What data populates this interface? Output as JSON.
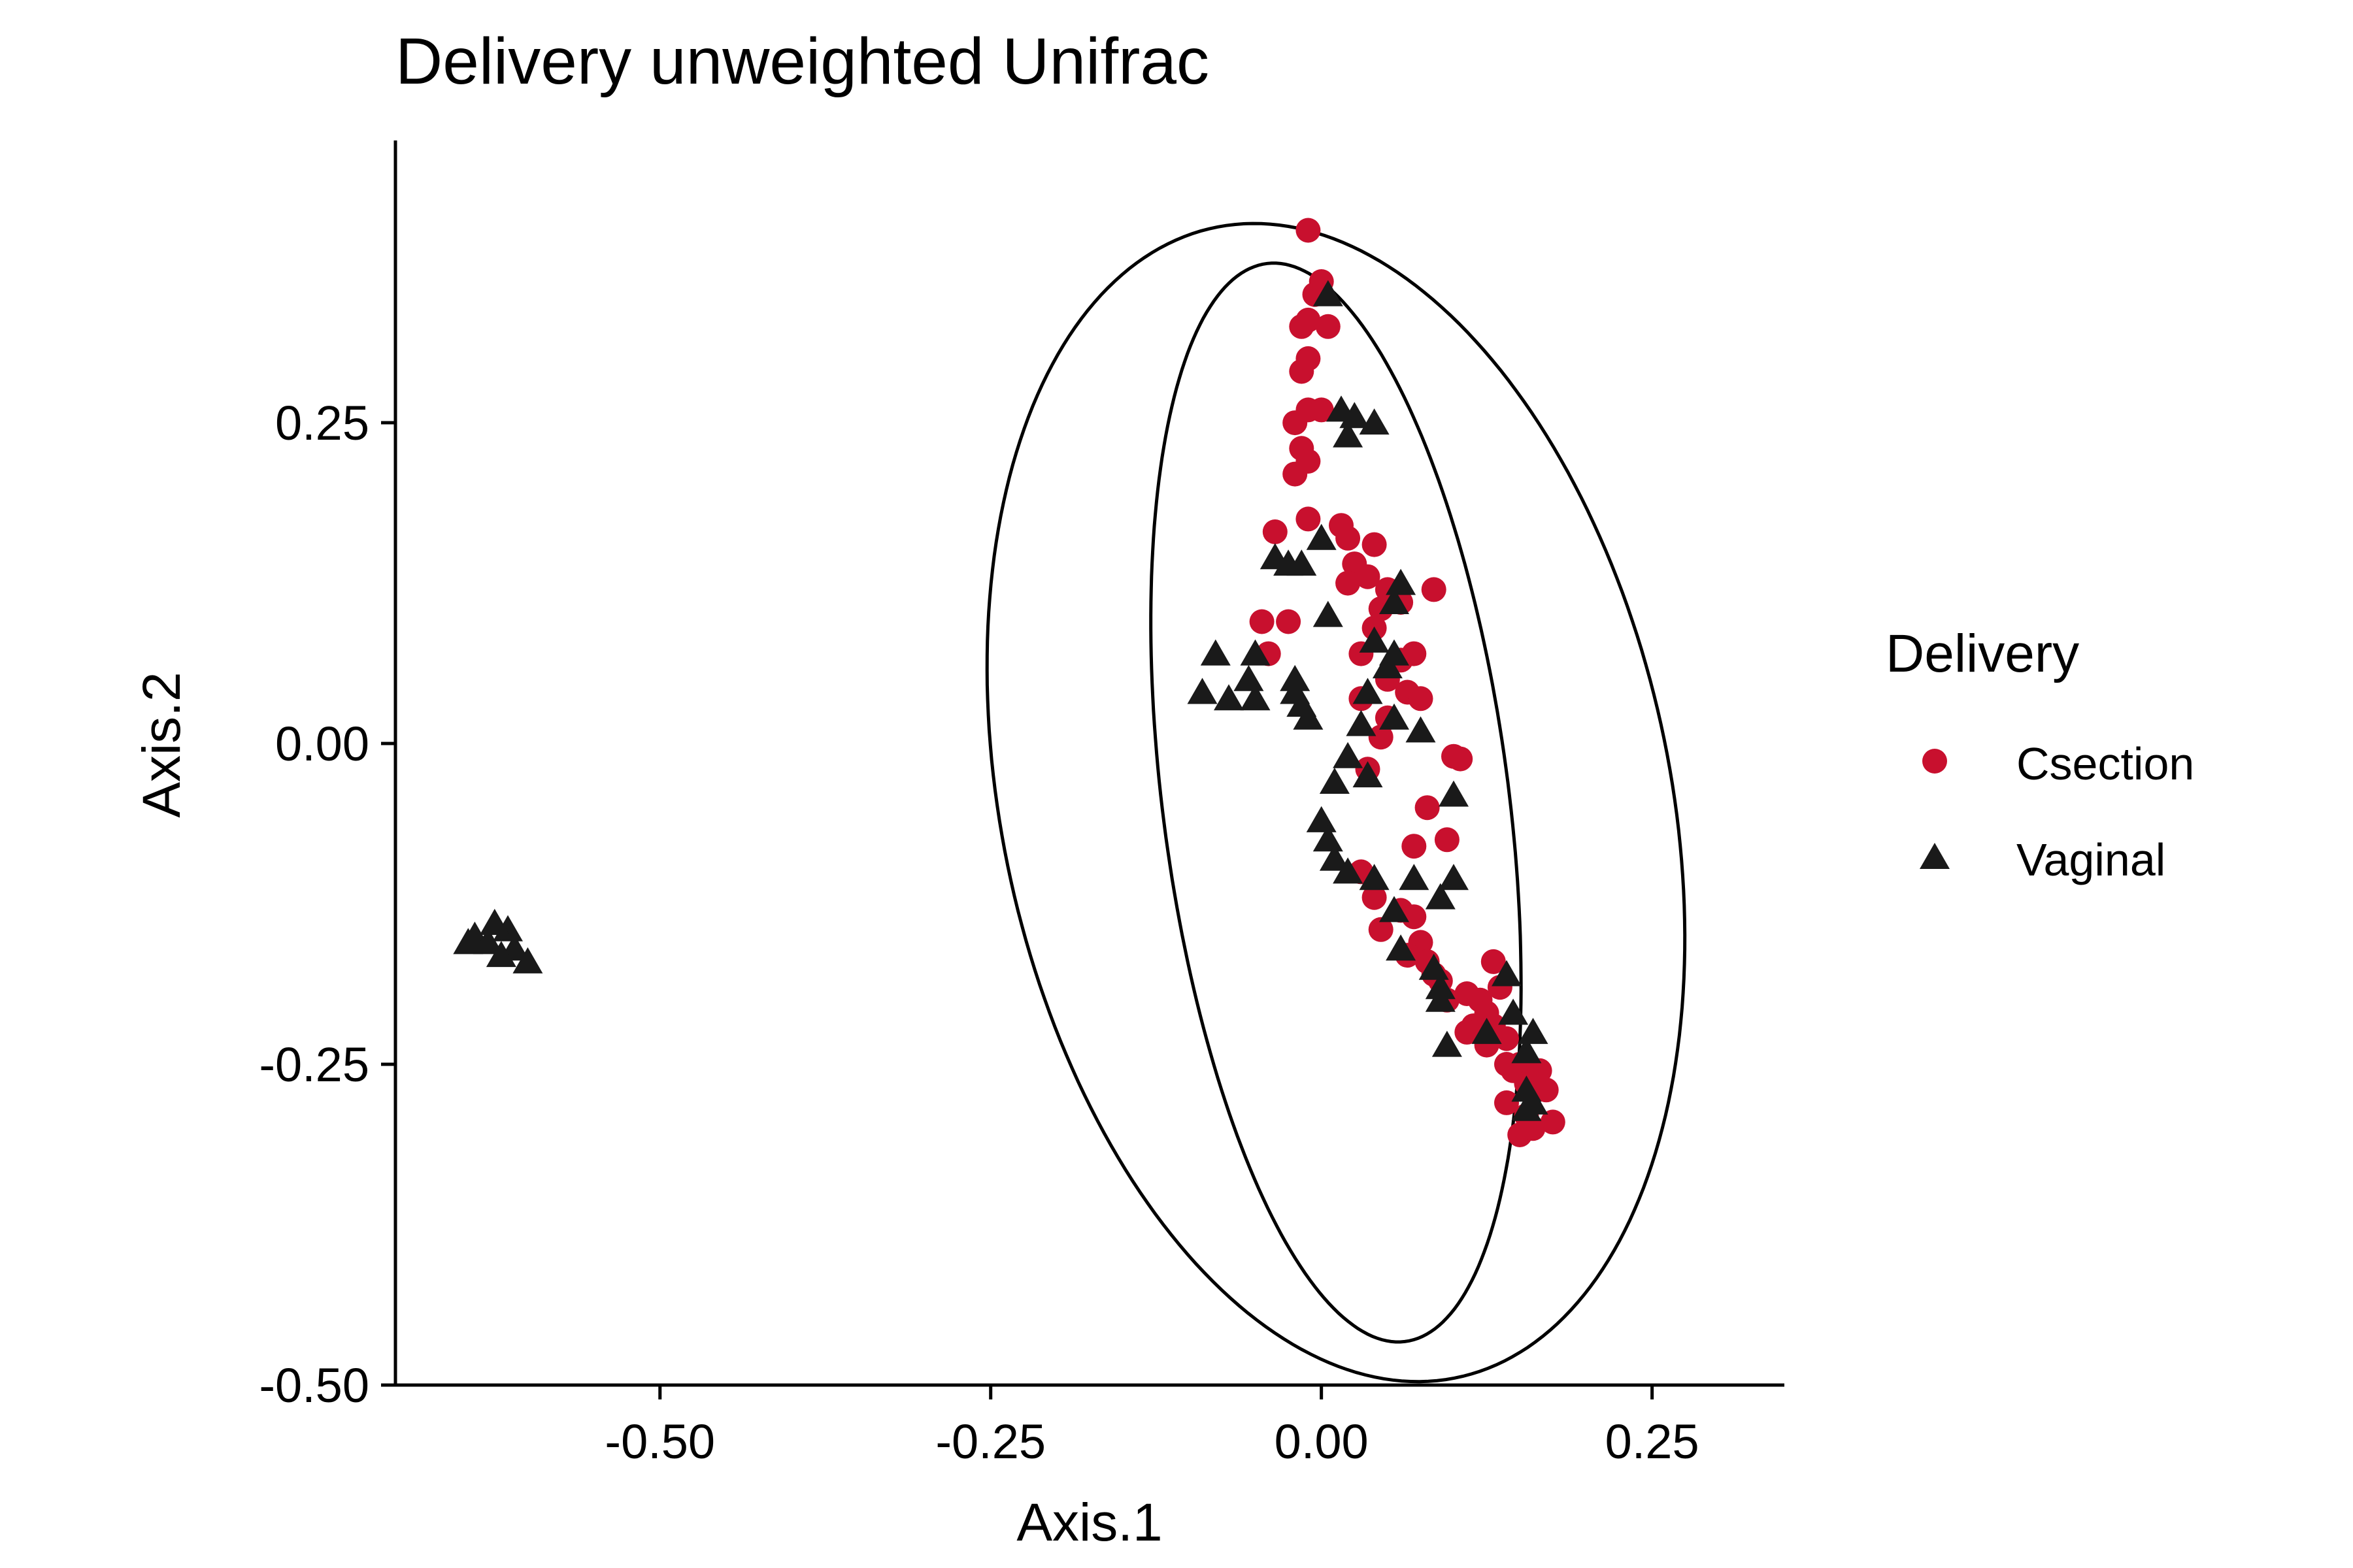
{
  "chart_data": {
    "type": "scatter",
    "title": "Delivery unweighted Unifrac",
    "xlabel": "Axis.1",
    "ylabel": "Axis.2",
    "xlim": [
      -0.7,
      0.35
    ],
    "ylim": [
      -0.5,
      0.47
    ],
    "x_ticks": [
      -0.5,
      -0.25,
      0.0,
      0.25
    ],
    "x_tick_labels": [
      "-0.50",
      "-0.25",
      "0.00",
      "0.25"
    ],
    "y_ticks": [
      -0.5,
      -0.25,
      0.0,
      0.25
    ],
    "y_tick_labels": [
      "-0.50",
      "-0.25",
      "0.00",
      "0.25"
    ],
    "grid": false,
    "legend": {
      "title": "Delivery",
      "position": "right",
      "entries": [
        {
          "label": "Csection",
          "marker": "circle",
          "color": "#c8102e"
        },
        {
          "label": "Vaginal",
          "marker": "triangle",
          "color": "#1a1a1a"
        }
      ]
    },
    "ellipses": [
      {
        "group": "Csection",
        "center": [
          0.011,
          -0.046
        ],
        "points": [
          [
            -0.005,
            0.4
          ],
          [
            0.175,
            -0.28
          ],
          [
            -0.098,
            0.15
          ],
          [
            0.12,
            -0.35
          ],
          [
            0.09,
            0.0
          ],
          [
            -0.06,
            0.3
          ]
        ]
      },
      {
        "group": "Vaginal",
        "center": [
          0.011,
          -0.046
        ],
        "points": [
          [
            -0.04,
            0.43
          ],
          [
            0.17,
            -0.45
          ],
          [
            -0.2,
            0.15
          ],
          [
            0.3,
            -0.15
          ],
          [
            0.12,
            0.3
          ],
          [
            -0.15,
            -0.3
          ]
        ]
      }
    ],
    "series": [
      {
        "name": "Csection",
        "marker": "circle",
        "color": "#c8102e",
        "points": [
          [
            -0.01,
            0.4
          ],
          [
            -0.005,
            0.35
          ],
          [
            0.0,
            0.36
          ],
          [
            -0.01,
            0.33
          ],
          [
            0.005,
            0.325
          ],
          [
            -0.015,
            0.325
          ],
          [
            -0.015,
            0.29
          ],
          [
            -0.01,
            0.3
          ],
          [
            -0.02,
            0.25
          ],
          [
            -0.01,
            0.26
          ],
          [
            -0.015,
            0.23
          ],
          [
            -0.02,
            0.21
          ],
          [
            -0.01,
            0.22
          ],
          [
            0.0,
            0.26
          ],
          [
            -0.01,
            0.175
          ],
          [
            -0.035,
            0.165
          ],
          [
            0.015,
            0.17
          ],
          [
            0.02,
            0.16
          ],
          [
            0.04,
            0.155
          ],
          [
            0.025,
            0.14
          ],
          [
            0.035,
            0.13
          ],
          [
            0.02,
            0.125
          ],
          [
            0.05,
            0.12
          ],
          [
            0.045,
            0.105
          ],
          [
            0.085,
            0.12
          ],
          [
            0.06,
            0.11
          ],
          [
            -0.045,
            0.095
          ],
          [
            -0.025,
            0.095
          ],
          [
            0.04,
            0.09
          ],
          [
            0.03,
            0.07
          ],
          [
            -0.04,
            0.07
          ],
          [
            0.06,
            0.065
          ],
          [
            0.07,
            0.07
          ],
          [
            0.05,
            0.05
          ],
          [
            0.03,
            0.035
          ],
          [
            0.065,
            0.04
          ],
          [
            0.075,
            0.035
          ],
          [
            0.05,
            0.02
          ],
          [
            0.045,
            0.005
          ],
          [
            0.1,
            -0.01
          ],
          [
            0.105,
            -0.012
          ],
          [
            0.035,
            -0.02
          ],
          [
            0.08,
            -0.05
          ],
          [
            0.095,
            -0.075
          ],
          [
            0.07,
            -0.08
          ],
          [
            0.03,
            -0.1
          ],
          [
            0.04,
            -0.12
          ],
          [
            0.06,
            -0.13
          ],
          [
            0.07,
            -0.135
          ],
          [
            0.045,
            -0.145
          ],
          [
            0.075,
            -0.155
          ],
          [
            0.065,
            -0.165
          ],
          [
            0.08,
            -0.17
          ],
          [
            0.085,
            -0.18
          ],
          [
            0.09,
            -0.185
          ],
          [
            0.095,
            -0.2
          ],
          [
            0.13,
            -0.17
          ],
          [
            0.11,
            -0.195
          ],
          [
            0.135,
            -0.19
          ],
          [
            0.12,
            -0.2
          ],
          [
            0.125,
            -0.21
          ],
          [
            0.13,
            -0.22
          ],
          [
            0.115,
            -0.22
          ],
          [
            0.11,
            -0.225
          ],
          [
            0.14,
            -0.23
          ],
          [
            0.125,
            -0.235
          ],
          [
            0.14,
            -0.25
          ],
          [
            0.15,
            -0.25
          ],
          [
            0.145,
            -0.255
          ],
          [
            0.16,
            -0.26
          ],
          [
            0.155,
            -0.265
          ],
          [
            0.165,
            -0.255
          ],
          [
            0.17,
            -0.27
          ],
          [
            0.14,
            -0.28
          ],
          [
            0.155,
            -0.29
          ],
          [
            0.175,
            -0.295
          ],
          [
            0.15,
            -0.305
          ],
          [
            0.16,
            -0.3
          ]
        ]
      },
      {
        "name": "Vaginal",
        "marker": "triangle",
        "color": "#1a1a1a",
        "points": [
          [
            -0.615,
            -0.145
          ],
          [
            -0.64,
            -0.15
          ],
          [
            -0.63,
            -0.155
          ],
          [
            -0.61,
            -0.16
          ],
          [
            -0.62,
            -0.165
          ],
          [
            -0.6,
            -0.17
          ],
          [
            -0.645,
            -0.155
          ],
          [
            -0.625,
            -0.14
          ],
          [
            0.015,
            0.26
          ],
          [
            0.02,
            0.24
          ],
          [
            0.04,
            0.25
          ],
          [
            0.025,
            0.255
          ],
          [
            0.005,
            0.35
          ],
          [
            -0.035,
            0.145
          ],
          [
            -0.025,
            0.14
          ],
          [
            -0.015,
            0.14
          ],
          [
            0.0,
            0.16
          ],
          [
            0.005,
            0.1
          ],
          [
            0.06,
            0.125
          ],
          [
            0.055,
            0.11
          ],
          [
            -0.08,
            0.07
          ],
          [
            -0.05,
            0.07
          ],
          [
            -0.055,
            0.05
          ],
          [
            -0.02,
            0.05
          ],
          [
            -0.02,
            0.04
          ],
          [
            -0.09,
            0.04
          ],
          [
            -0.07,
            0.035
          ],
          [
            -0.05,
            0.035
          ],
          [
            -0.015,
            0.03
          ],
          [
            -0.01,
            0.02
          ],
          [
            0.04,
            0.08
          ],
          [
            0.055,
            0.07
          ],
          [
            0.05,
            0.06
          ],
          [
            0.035,
            0.04
          ],
          [
            0.03,
            0.015
          ],
          [
            0.055,
            0.02
          ],
          [
            0.075,
            0.01
          ],
          [
            0.02,
            -0.01
          ],
          [
            0.01,
            -0.03
          ],
          [
            0.035,
            -0.025
          ],
          [
            0.1,
            -0.04
          ],
          [
            0.0,
            -0.06
          ],
          [
            0.005,
            -0.075
          ],
          [
            0.01,
            -0.09
          ],
          [
            0.02,
            -0.1
          ],
          [
            0.04,
            -0.105
          ],
          [
            0.07,
            -0.105
          ],
          [
            0.1,
            -0.105
          ],
          [
            0.09,
            -0.12
          ],
          [
            0.055,
            -0.13
          ],
          [
            0.06,
            -0.16
          ],
          [
            0.085,
            -0.175
          ],
          [
            0.09,
            -0.19
          ],
          [
            0.09,
            -0.2
          ],
          [
            0.14,
            -0.18
          ],
          [
            0.145,
            -0.21
          ],
          [
            0.16,
            -0.225
          ],
          [
            0.095,
            -0.235
          ],
          [
            0.125,
            -0.225
          ],
          [
            0.155,
            -0.24
          ],
          [
            0.155,
            -0.27
          ],
          [
            0.155,
            -0.285
          ],
          [
            0.16,
            -0.28
          ]
        ]
      }
    ]
  }
}
